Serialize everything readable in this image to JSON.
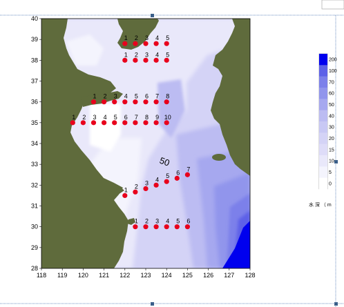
{
  "map": {
    "x_ticks": [
      "118",
      "119",
      "120",
      "121",
      "122",
      "123",
      "124",
      "125",
      "126",
      "127",
      "128"
    ],
    "y_ticks": [
      "40",
      "39",
      "38",
      "37",
      "36",
      "35",
      "34",
      "33",
      "32",
      "31",
      "30",
      "29",
      "28"
    ],
    "depth_label": "50",
    "land_color": "#5f6b3c",
    "sea_colors": [
      "#ffffff",
      "#e9e8fa",
      "#d4d3f6",
      "#bcbcf2",
      "#a6a8ef",
      "#9195ec",
      "#7c80ea",
      "#5d61e8",
      "#0000ee"
    ]
  },
  "stations": [
    {
      "lon": 122.0,
      "lat": 38.8,
      "label": "1"
    },
    {
      "lon": 122.5,
      "lat": 38.8,
      "label": "2"
    },
    {
      "lon": 123.0,
      "lat": 38.8,
      "label": "3"
    },
    {
      "lon": 123.5,
      "lat": 38.8,
      "label": "4"
    },
    {
      "lon": 124.0,
      "lat": 38.8,
      "label": "5"
    },
    {
      "lon": 122.0,
      "lat": 38.0,
      "label": "1"
    },
    {
      "lon": 122.5,
      "lat": 38.0,
      "label": "2"
    },
    {
      "lon": 123.0,
      "lat": 38.0,
      "label": "3"
    },
    {
      "lon": 123.5,
      "lat": 38.0,
      "label": "4"
    },
    {
      "lon": 124.0,
      "lat": 38.0,
      "label": "5"
    },
    {
      "lon": 120.5,
      "lat": 36.0,
      "label": "1"
    },
    {
      "lon": 121.0,
      "lat": 36.0,
      "label": "2"
    },
    {
      "lon": 121.5,
      "lat": 36.0,
      "label": "3"
    },
    {
      "lon": 122.0,
      "lat": 36.0,
      "label": "4"
    },
    {
      "lon": 122.5,
      "lat": 36.0,
      "label": "5"
    },
    {
      "lon": 123.0,
      "lat": 36.0,
      "label": "6"
    },
    {
      "lon": 123.5,
      "lat": 36.0,
      "label": "7"
    },
    {
      "lon": 124.0,
      "lat": 36.0,
      "label": "8"
    },
    {
      "lon": 119.5,
      "lat": 35.0,
      "label": "1"
    },
    {
      "lon": 120.0,
      "lat": 35.0,
      "label": "2"
    },
    {
      "lon": 120.5,
      "lat": 35.0,
      "label": "3"
    },
    {
      "lon": 121.0,
      "lat": 35.0,
      "label": "4"
    },
    {
      "lon": 121.5,
      "lat": 35.0,
      "label": "5"
    },
    {
      "lon": 122.0,
      "lat": 35.0,
      "label": "6"
    },
    {
      "lon": 122.5,
      "lat": 35.0,
      "label": "7"
    },
    {
      "lon": 123.0,
      "lat": 35.0,
      "label": "8"
    },
    {
      "lon": 123.5,
      "lat": 35.0,
      "label": "9"
    },
    {
      "lon": 124.0,
      "lat": 35.0,
      "label": "10"
    },
    {
      "lon": 122.0,
      "lat": 31.5,
      "label": "1"
    },
    {
      "lon": 122.5,
      "lat": 31.67,
      "label": "2"
    },
    {
      "lon": 123.0,
      "lat": 31.83,
      "label": "3"
    },
    {
      "lon": 123.5,
      "lat": 32.0,
      "label": "4"
    },
    {
      "lon": 124.0,
      "lat": 32.17,
      "label": "5"
    },
    {
      "lon": 124.5,
      "lat": 32.33,
      "label": "6"
    },
    {
      "lon": 125.0,
      "lat": 32.5,
      "label": "7"
    },
    {
      "lon": 122.5,
      "lat": 30.0,
      "label": "1"
    },
    {
      "lon": 123.0,
      "lat": 30.0,
      "label": "2"
    },
    {
      "lon": 123.5,
      "lat": 30.0,
      "label": "3"
    },
    {
      "lon": 124.0,
      "lat": 30.0,
      "label": "4"
    },
    {
      "lon": 124.5,
      "lat": 30.0,
      "label": "5"
    },
    {
      "lon": 125.0,
      "lat": 30.0,
      "label": "6"
    }
  ],
  "legend": {
    "ticks": [
      "200",
      "100",
      "70",
      "60",
      "50",
      "40",
      "30",
      "20",
      "15",
      "10",
      "5",
      "0"
    ],
    "colors": [
      "#0000ee",
      "#5d61e8",
      "#7c80ea",
      "#9195ec",
      "#a6a8ef",
      "#bcbcf2",
      "#c8c8f4",
      "#d4d3f6",
      "#dedcf8",
      "#e9e8fa",
      "#f4f4fd",
      "#ffffff"
    ],
    "caption": "水 深 （ m"
  }
}
